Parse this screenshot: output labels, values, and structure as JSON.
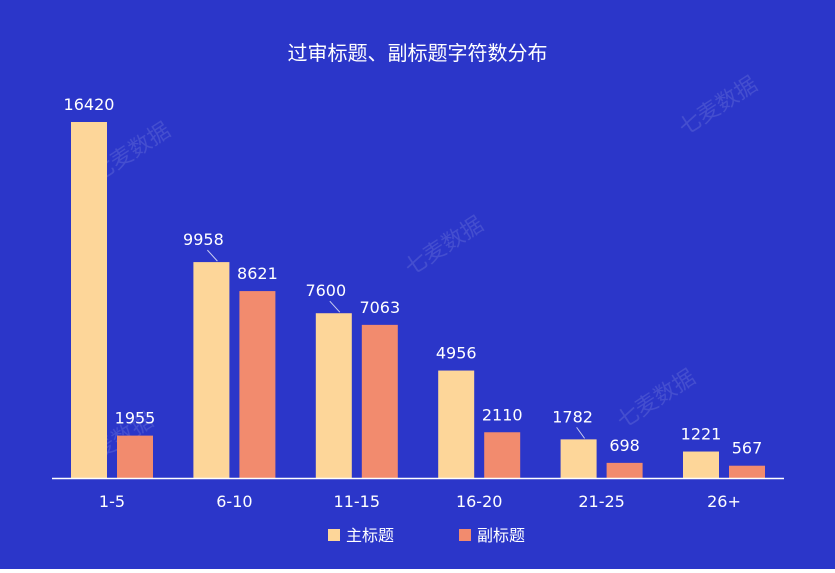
{
  "chart_data": {
    "type": "bar",
    "title": "过审标题、副标题字符数分布",
    "xlabel": "",
    "ylabel": "",
    "categories": [
      "1-5",
      "6-10",
      "11-15",
      "16-20",
      "21-25",
      "26+"
    ],
    "series": [
      {
        "name": "主标题",
        "values": [
          16420,
          9958,
          7600,
          4956,
          1782,
          1221
        ]
      },
      {
        "name": "副标题",
        "values": [
          1955,
          8621,
          7063,
          2110,
          698,
          567
        ]
      }
    ],
    "ylim": [
      0,
      16420
    ],
    "grid": false,
    "legend_position": "bottom-center",
    "data_labels": true
  },
  "watermark": {
    "text": "七麦数据"
  },
  "colors": {
    "background": "#2b36c9",
    "series": [
      "#fdd699",
      "#f28b6e"
    ],
    "text": "#ffffff",
    "axis": "#ffffff",
    "leader": "#c9cdf0",
    "watermark": "rgba(255,255,255,0.12)"
  }
}
